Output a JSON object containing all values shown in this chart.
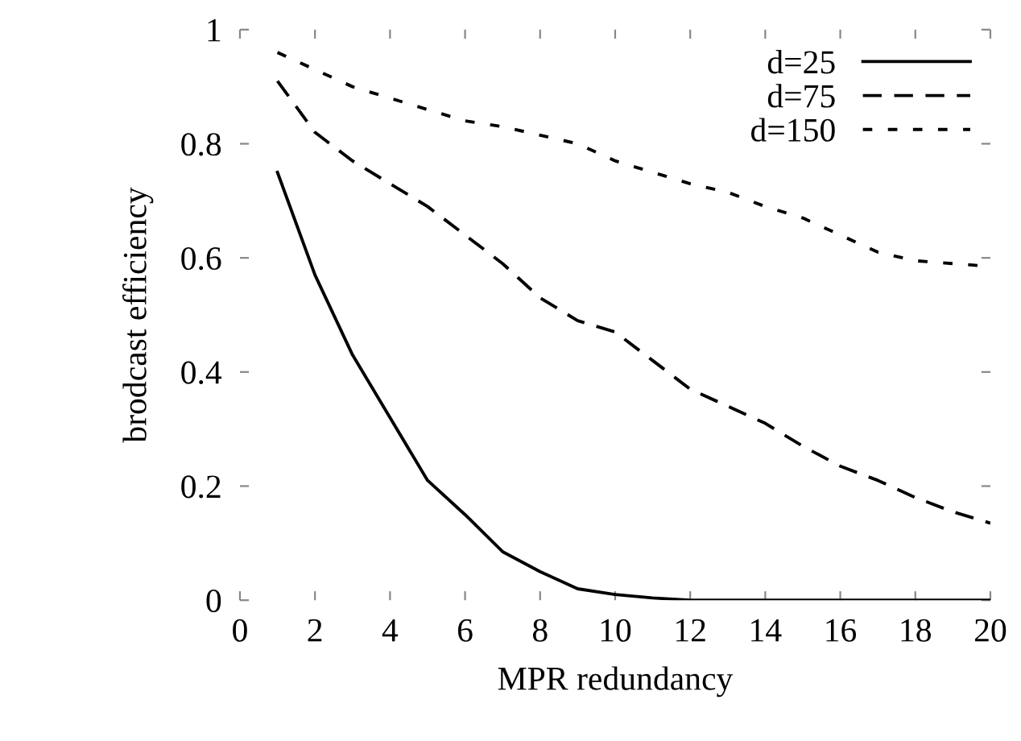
{
  "chart_data": {
    "type": "line",
    "xlabel": "MPR redundancy",
    "ylabel": "brodcast efficiency",
    "x": [
      1,
      2,
      3,
      4,
      5,
      6,
      7,
      8,
      9,
      10,
      11,
      12,
      13,
      14,
      15,
      16,
      17,
      18,
      19,
      20
    ],
    "xlim": [
      0,
      20
    ],
    "xticks": [
      0,
      2,
      4,
      6,
      8,
      10,
      12,
      14,
      16,
      18,
      20
    ],
    "ylim": [
      0,
      1
    ],
    "yticks": [
      0,
      0.2,
      0.4,
      0.6,
      0.8,
      1
    ],
    "grid": false,
    "legend": "top right",
    "marker": "none",
    "series": [
      {
        "name": "d=25",
        "color": "#000000",
        "line_style": "solid",
        "values": [
          0.75,
          0.57,
          0.43,
          0.32,
          0.21,
          0.15,
          0.085,
          0.05,
          0.02,
          0.01,
          0.004,
          0,
          0,
          0,
          0,
          0,
          0,
          0,
          0,
          0
        ]
      },
      {
        "name": "d=75",
        "color": "#000000",
        "line_style": "dashed",
        "values": [
          0.91,
          0.82,
          0.77,
          0.73,
          0.69,
          0.64,
          0.59,
          0.53,
          0.49,
          0.47,
          0.42,
          0.37,
          0.34,
          0.31,
          0.27,
          0.235,
          0.21,
          0.18,
          0.155,
          0.135
        ]
      },
      {
        "name": "d=150",
        "color": "#000000",
        "line_style": "dotted",
        "values": [
          0.96,
          0.93,
          0.9,
          0.88,
          0.86,
          0.84,
          0.83,
          0.815,
          0.8,
          0.77,
          0.75,
          0.73,
          0.715,
          0.69,
          0.67,
          0.64,
          0.61,
          0.595,
          0.59,
          0.585
        ]
      }
    ]
  }
}
